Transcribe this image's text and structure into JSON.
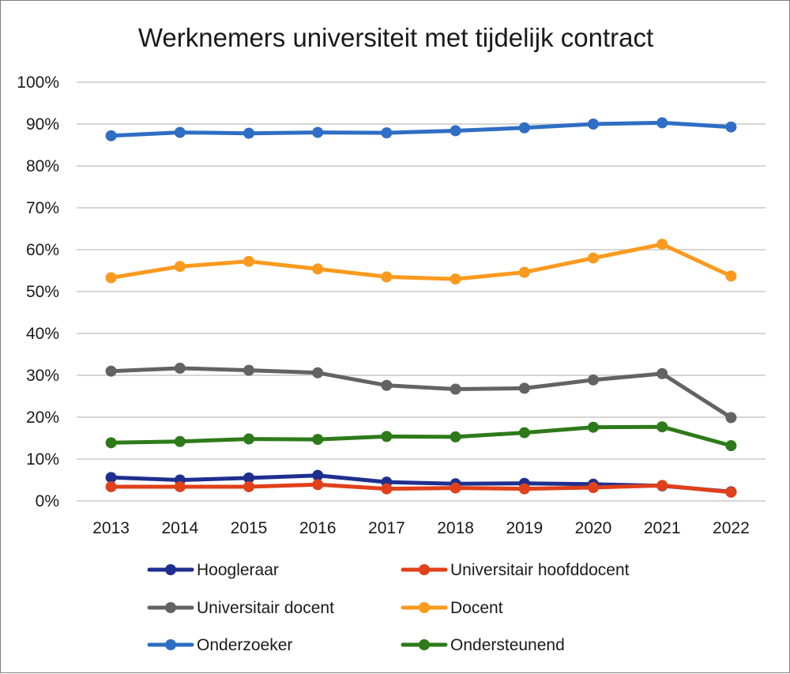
{
  "chart_data": {
    "type": "line",
    "title": "Werknemers universiteit met tijdelijk contract",
    "xlabel": "",
    "ylabel": "",
    "categories": [
      "2013",
      "2014",
      "2015",
      "2016",
      "2017",
      "2018",
      "2019",
      "2020",
      "2021",
      "2022"
    ],
    "ylim": [
      0,
      100
    ],
    "y_ticks": [
      0,
      10,
      20,
      30,
      40,
      50,
      60,
      70,
      80,
      90,
      100
    ],
    "y_tick_labels": [
      "0%",
      "10%",
      "20%",
      "30%",
      "40%",
      "50%",
      "60%",
      "70%",
      "80%",
      "90%",
      "100%"
    ],
    "grid": true,
    "legend_position": "bottom",
    "series": [
      {
        "name": "Hoogleraar",
        "color": "#1f2f8f",
        "values": [
          5.6,
          5.0,
          5.5,
          6.1,
          4.5,
          4.1,
          4.2,
          4.0,
          3.6,
          2.2
        ]
      },
      {
        "name": "Universitair hoofddocent",
        "color": "#e0401a",
        "values": [
          3.4,
          3.4,
          3.4,
          3.9,
          2.9,
          3.1,
          2.9,
          3.2,
          3.7,
          2.1
        ]
      },
      {
        "name": "Universitair docent",
        "color": "#636363",
        "values": [
          31.0,
          31.7,
          31.2,
          30.6,
          27.6,
          26.7,
          26.9,
          28.9,
          30.4,
          19.9
        ]
      },
      {
        "name": "Docent",
        "color": "#fb9a1e",
        "values": [
          53.3,
          56.0,
          57.2,
          55.4,
          53.5,
          53.0,
          54.6,
          58.0,
          61.3,
          53.7
        ]
      },
      {
        "name": "Onderzoeker",
        "color": "#2e6ec4",
        "values": [
          87.2,
          88.0,
          87.8,
          88.0,
          87.9,
          88.4,
          89.1,
          90.0,
          90.3,
          89.3
        ]
      },
      {
        "name": "Ondersteunend",
        "color": "#2e7a1a",
        "values": [
          13.9,
          14.2,
          14.8,
          14.7,
          15.4,
          15.3,
          16.3,
          17.6,
          17.7,
          13.2
        ]
      }
    ]
  }
}
